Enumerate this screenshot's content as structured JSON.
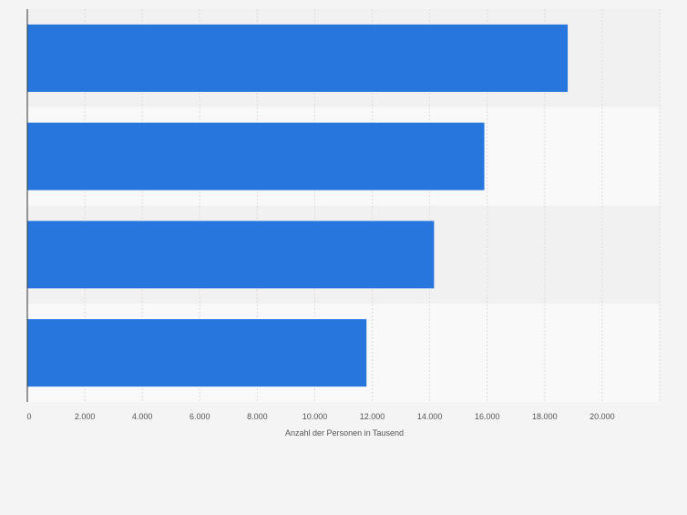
{
  "chart_data": {
    "type": "bar",
    "orientation": "horizontal",
    "categories": [
      "",
      "",
      "",
      ""
    ],
    "values": [
      18800,
      15900,
      14150,
      11800
    ],
    "title": "",
    "xlabel": "Anzahl der Personen in Tausend",
    "ylabel": "",
    "xlim": [
      0,
      22000
    ],
    "ticks": [
      0,
      2000,
      4000,
      6000,
      8000,
      10000,
      12000,
      14000,
      16000,
      18000,
      20000
    ],
    "tick_labels": [
      "0",
      "2.000",
      "4.000",
      "6.000",
      "8.000",
      "10.000",
      "12.000",
      "14.000",
      "16.000",
      "18.000",
      "20.000"
    ],
    "grid": true,
    "legend": "none",
    "colors": {
      "bar": "#2776dd",
      "band_dark": "#f1f1f1",
      "band_light": "#f9f9f9",
      "grid": "#dcdcdc",
      "axis": "#333333",
      "tick_text": "#555555",
      "page_bg": "#f4f4f4"
    }
  }
}
